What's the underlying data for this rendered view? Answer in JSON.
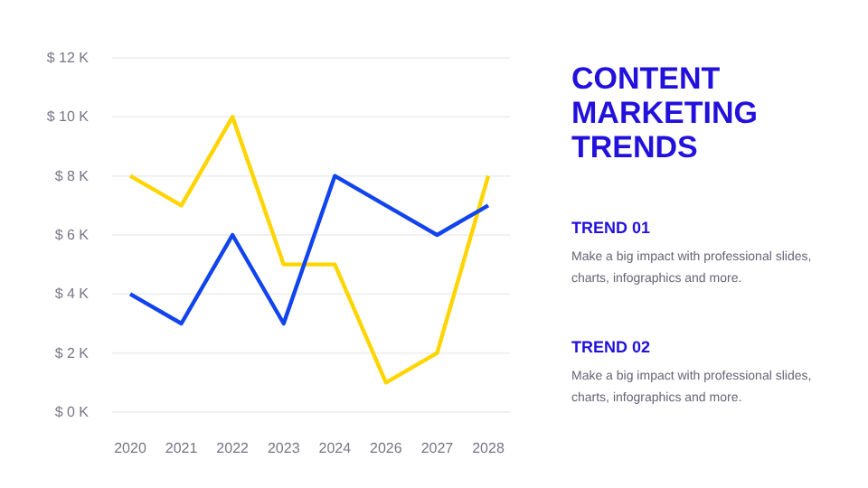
{
  "chart_data": {
    "type": "line",
    "title": "CONTENT MARKETING TRENDS",
    "annotations": [
      "TREND 01",
      "Make a big impact with professional slides, charts, infographics and more.",
      "TREND 02",
      "Make a big impact with professional slides, charts, infographics and more."
    ],
    "categories": [
      "2020",
      "2021",
      "2022",
      "2023",
      "2024",
      "2026",
      "2027",
      "2028"
    ],
    "series": [
      {
        "color": "#ffd500",
        "values": [
          8,
          7,
          10,
          5,
          5,
          1,
          2,
          8
        ]
      },
      {
        "color": "#1144ee",
        "values": [
          4,
          3,
          6,
          3,
          8,
          7,
          6,
          7
        ]
      }
    ],
    "ylim": [
      0,
      12
    ],
    "yticks": [
      {
        "value": 0,
        "label": "$ 0 K"
      },
      {
        "value": 2,
        "label": "$ 2 K"
      },
      {
        "value": 4,
        "label": "$ 4 K"
      },
      {
        "value": 6,
        "label": "$ 6 K"
      },
      {
        "value": 8,
        "label": "$ 8 K"
      },
      {
        "value": 10,
        "label": "$ 10 K"
      },
      {
        "value": 12,
        "label": "$ 12 K"
      }
    ],
    "grid": "y",
    "marker": "none",
    "line_style": "solid"
  }
}
